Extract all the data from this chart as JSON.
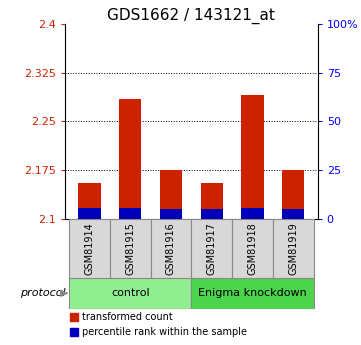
{
  "title": "GDS1662 / 143121_at",
  "samples": [
    "GSM81914",
    "GSM81915",
    "GSM81916",
    "GSM81917",
    "GSM81918",
    "GSM81919"
  ],
  "red_values": [
    2.155,
    2.285,
    2.175,
    2.155,
    2.29,
    2.175
  ],
  "blue_values": [
    2.117,
    2.117,
    2.115,
    2.115,
    2.117,
    2.115
  ],
  "y_min": 2.1,
  "y_max": 2.4,
  "y_ticks": [
    2.1,
    2.175,
    2.25,
    2.325,
    2.4
  ],
  "y_right_ticks": [
    0,
    25,
    50,
    75,
    100
  ],
  "y_right_labels": [
    "0",
    "25",
    "50",
    "75",
    "100%"
  ],
  "grid_lines": [
    2.175,
    2.25,
    2.325
  ],
  "groups": [
    {
      "label": "control",
      "indices": [
        0,
        1,
        2
      ],
      "color": "#90ee90"
    },
    {
      "label": "Enigma knockdown",
      "indices": [
        3,
        4,
        5
      ],
      "color": "#4cd44c"
    }
  ],
  "bar_width": 0.55,
  "red_color": "#cc2200",
  "blue_color": "#0000bb",
  "protocol_label": "protocol",
  "legend_red": "transformed count",
  "legend_blue": "percentile rank within the sample",
  "title_fontsize": 11,
  "tick_fontsize": 8,
  "label_fontsize": 8,
  "sample_fontsize": 7,
  "group_fontsize": 8
}
